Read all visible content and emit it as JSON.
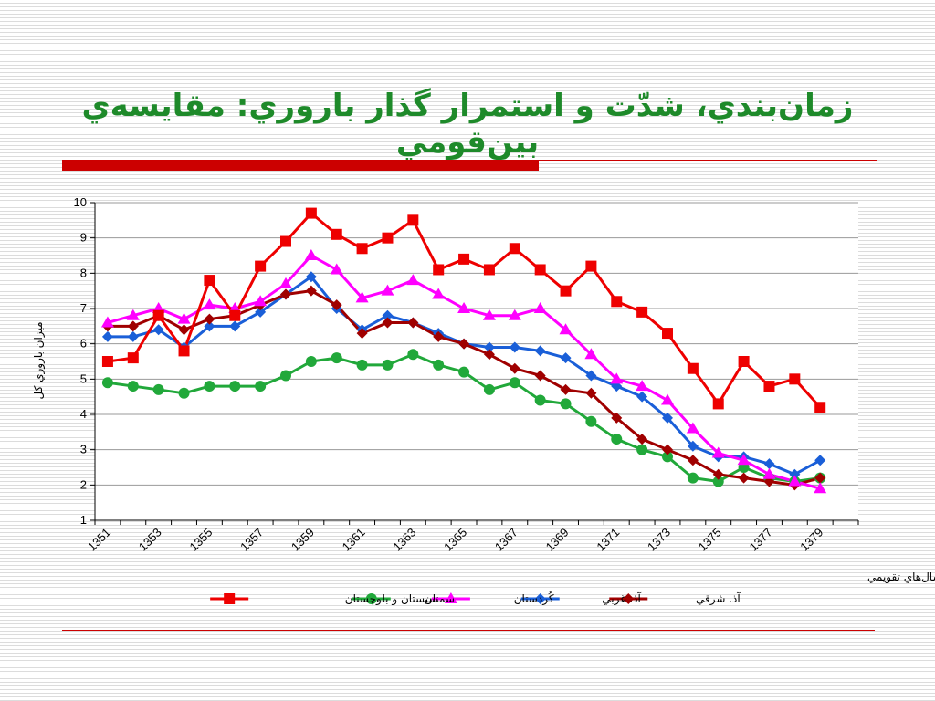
{
  "slide": {
    "title": "زمان‌بندي، شدّت و استمرار گذار باروري: مقايسه‌ي بين‌قومي"
  },
  "chart_data": {
    "type": "line",
    "title": "",
    "xlabel": "سال‌هاي تقويمي",
    "ylabel": "ميزان باروري كل",
    "ylim": [
      1,
      10
    ],
    "yticks": [
      1,
      2,
      3,
      4,
      5,
      6,
      7,
      8,
      9,
      10
    ],
    "x": [
      1351,
      1352,
      1353,
      1354,
      1355,
      1356,
      1357,
      1358,
      1359,
      1360,
      1361,
      1362,
      1363,
      1364,
      1365,
      1366,
      1367,
      1368,
      1369,
      1370,
      1371,
      1372,
      1373,
      1374,
      1375,
      1376,
      1377,
      1378,
      1379,
      1380
    ],
    "xtick_labels": [
      "1351",
      "1353",
      "1355",
      "1357",
      "1359",
      "1361",
      "1363",
      "1365",
      "1367",
      "1369",
      "1371",
      "1373",
      "1375",
      "1377",
      "1379"
    ],
    "grid": "horizontal",
    "legend_position": "bottom",
    "series": [
      {
        "name": "آذ. شرقي",
        "color": "#a00000",
        "marker": "diamond",
        "values": [
          6.5,
          6.5,
          6.8,
          6.4,
          6.7,
          6.8,
          7.1,
          7.4,
          7.5,
          7.1,
          6.3,
          6.6,
          6.6,
          6.2,
          6.0,
          5.7,
          5.3,
          5.1,
          4.7,
          4.6,
          3.9,
          3.3,
          3.0,
          2.7,
          2.3,
          2.2,
          2.1,
          2.0,
          2.2,
          null
        ]
      },
      {
        "name": "آذ. غربي",
        "color": "#1a5fd8",
        "marker": "diamond",
        "values": [
          6.2,
          6.2,
          6.4,
          5.9,
          6.5,
          6.5,
          6.9,
          7.4,
          7.9,
          7.0,
          6.4,
          6.8,
          6.6,
          6.3,
          6.0,
          5.9,
          5.9,
          5.8,
          5.6,
          5.1,
          4.8,
          4.5,
          3.9,
          3.1,
          2.8,
          2.8,
          2.6,
          2.3,
          2.7,
          null
        ]
      },
      {
        "name": "كُردستان",
        "color": "#ff00ff",
        "marker": "triangle",
        "values": [
          6.6,
          6.8,
          7.0,
          6.7,
          7.1,
          7.0,
          7.2,
          7.7,
          8.5,
          8.1,
          7.3,
          7.5,
          7.8,
          7.4,
          7.0,
          6.8,
          6.8,
          7.0,
          6.4,
          5.7,
          5.0,
          4.8,
          4.4,
          3.6,
          2.9,
          2.7,
          2.3,
          2.1,
          1.9,
          null
        ]
      },
      {
        "name": "سمنان",
        "color": "#21a83a",
        "marker": "circle",
        "values": [
          4.9,
          4.8,
          4.7,
          4.6,
          4.8,
          4.8,
          4.8,
          5.1,
          5.5,
          5.6,
          5.4,
          5.4,
          5.7,
          5.4,
          5.2,
          4.7,
          4.9,
          4.4,
          4.3,
          3.8,
          3.3,
          3.0,
          2.8,
          2.2,
          2.1,
          2.5,
          2.2,
          2.1,
          2.2,
          null
        ]
      },
      {
        "name": "سيستان و بلوچستان",
        "color": "#ee0000",
        "marker": "square",
        "values": [
          5.5,
          5.6,
          6.8,
          5.8,
          7.8,
          6.8,
          8.2,
          8.9,
          9.7,
          9.1,
          8.7,
          9.0,
          9.5,
          8.1,
          8.4,
          8.1,
          8.7,
          8.1,
          7.5,
          8.2,
          7.2,
          6.9,
          6.3,
          5.3,
          4.3,
          5.5,
          4.8,
          5.0,
          4.2,
          null
        ]
      }
    ]
  }
}
